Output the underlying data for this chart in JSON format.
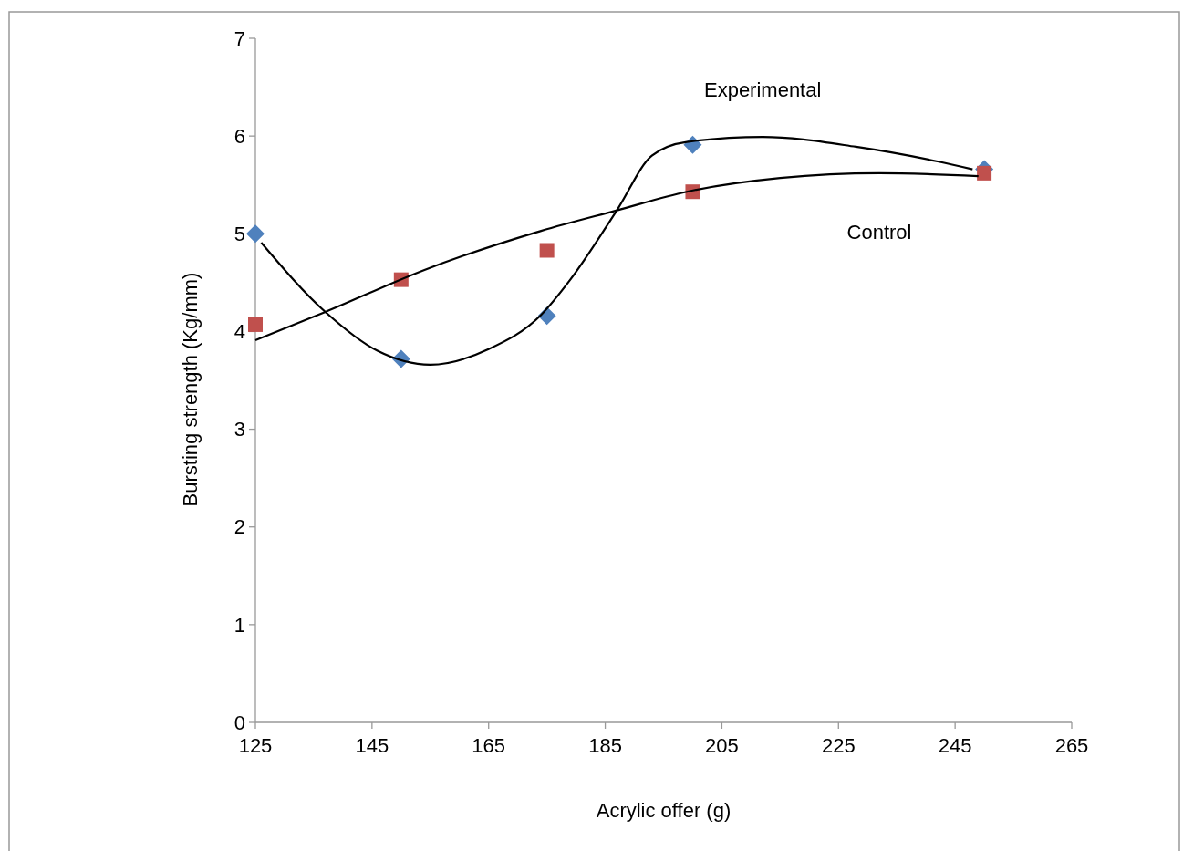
{
  "chart_data": {
    "type": "scatter",
    "xlabel": "Acrylic offer (g)",
    "ylabel": "Bursting strength (Kg/mm)",
    "xlim": [
      125,
      265
    ],
    "xticks": [
      125,
      145,
      165,
      185,
      205,
      225,
      245,
      265
    ],
    "ylim": [
      0,
      7
    ],
    "yticks": [
      0,
      1,
      2,
      3,
      4,
      5,
      6,
      7
    ],
    "grid": false,
    "series": [
      {
        "marker": "diamond",
        "color": "#4f81bd",
        "x": [
          125,
          150,
          175,
          200,
          250
        ],
        "values": [
          5.0,
          3.72,
          4.16,
          5.91,
          5.66
        ]
      },
      {
        "marker": "square",
        "color": "#c0504d",
        "x": [
          125,
          150,
          175,
          200,
          250
        ],
        "values": [
          4.07,
          4.53,
          4.83,
          5.43,
          5.62
        ]
      },
      {
        "type": "line",
        "name": "Experimental",
        "marker": "none",
        "line_style": "solid",
        "color": "#000000",
        "x": [
          126,
          137,
          146,
          155,
          165,
          174,
          179,
          187,
          193,
          199,
          212,
          228,
          242,
          248
        ],
        "values": [
          4.91,
          4.2,
          3.8,
          3.66,
          3.82,
          4.17,
          4.53,
          5.24,
          5.8,
          5.94,
          5.99,
          5.89,
          5.74,
          5.66
        ]
      },
      {
        "type": "line",
        "name": "Control",
        "marker": "none",
        "line_style": "solid",
        "color": "#000000",
        "x": [
          125,
          137,
          154,
          174,
          187,
          199,
          215,
          232,
          249
        ],
        "values": [
          3.91,
          4.2,
          4.63,
          5.03,
          5.24,
          5.43,
          5.57,
          5.62,
          5.59
        ]
      }
    ]
  }
}
